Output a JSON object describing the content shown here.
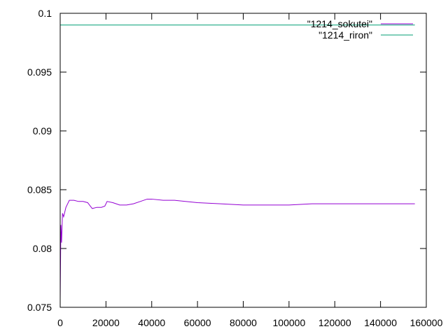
{
  "chart_data": {
    "type": "line",
    "title": "",
    "xlabel": "",
    "ylabel": "",
    "xlim": [
      0,
      160000
    ],
    "ylim": [
      0.075,
      0.1
    ],
    "grid": false,
    "legend_position": "top-right",
    "x_ticks": [
      0,
      20000,
      40000,
      60000,
      80000,
      100000,
      120000,
      140000,
      160000
    ],
    "x_tick_labels": [
      "0",
      "20000",
      "40000",
      "60000",
      "80000",
      "100000",
      "120000",
      "140000",
      "160000"
    ],
    "y_ticks": [
      0.075,
      0.08,
      0.085,
      0.09,
      0.095,
      0.1
    ],
    "y_tick_labels": [
      "0.075",
      "0.08",
      "0.085",
      "0.09",
      "0.095",
      "0.1"
    ],
    "series": [
      {
        "name": "\"1214_sokutei\"",
        "color": "#9400d3",
        "x": [
          0,
          300,
          600,
          1000,
          1500,
          2500,
          4000,
          6000,
          8000,
          10000,
          12000,
          14000,
          16000,
          18000,
          19500,
          20500,
          23000,
          26000,
          29000,
          32000,
          35000,
          38000,
          40000,
          45000,
          50000,
          60000,
          70000,
          80000,
          90000,
          100000,
          110000,
          120000,
          130000,
          140000,
          150000,
          155000
        ],
        "y": [
          0.0757,
          0.082,
          0.0805,
          0.083,
          0.0827,
          0.0835,
          0.0841,
          0.0841,
          0.084,
          0.084,
          0.0839,
          0.0834,
          0.0835,
          0.0835,
          0.0836,
          0.084,
          0.0839,
          0.0837,
          0.0837,
          0.0838,
          0.084,
          0.0842,
          0.0842,
          0.0841,
          0.0841,
          0.0839,
          0.0838,
          0.0837,
          0.0837,
          0.0837,
          0.0838,
          0.0838,
          0.0838,
          0.0838,
          0.0838,
          0.0838
        ]
      },
      {
        "name": "\"1214_riron\"",
        "color": "#009e73",
        "x": [
          0,
          155000
        ],
        "y": [
          0.099,
          0.099
        ]
      }
    ]
  }
}
